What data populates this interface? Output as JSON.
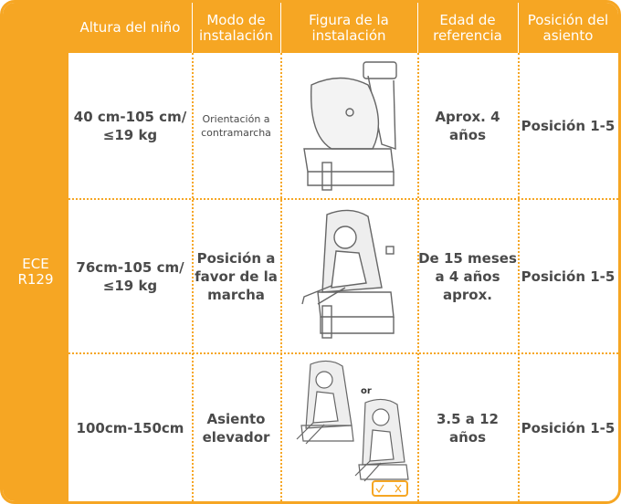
{
  "table": {
    "group": [
      "ECE",
      "R129"
    ],
    "headers": [
      [
        "Altura del niño"
      ],
      [
        "Modo de",
        "instalación"
      ],
      [
        "Figura de la",
        "instalación"
      ],
      [
        "Edad de",
        "referencia"
      ],
      [
        "Posición del",
        "asiento"
      ]
    ],
    "rows": [
      {
        "height": [
          "40 cm-105 cm/",
          "≤19 kg"
        ],
        "mode": [
          "Orientación a",
          "contramarcha"
        ],
        "age": [
          "Aprox. 4",
          "años"
        ],
        "position": "Posición 1-5"
      },
      {
        "height": [
          "76cm-105 cm/",
          "≤19 kg"
        ],
        "mode": [
          "Posición a",
          "favor de la",
          "marcha"
        ],
        "age": [
          "De 15 meses",
          "a 4 años",
          "aprox."
        ],
        "position": "Posición 1-5"
      },
      {
        "height": [
          "100cm-150cm"
        ],
        "mode": [
          "Asiento",
          "elevador"
        ],
        "figure_note": "or",
        "age": [
          "3.5 a 12 años"
        ],
        "position": "Posición 1-5"
      }
    ]
  }
}
